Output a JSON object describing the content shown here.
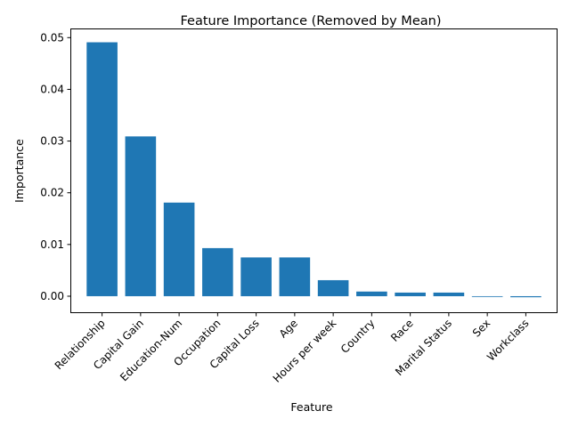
{
  "chart_data": {
    "type": "bar",
    "title": "Feature Importance (Removed by Mean)",
    "xlabel": "Feature",
    "ylabel": "Importance",
    "categories": [
      "Relationship",
      "Capital Gain",
      "Education-Num",
      "Occupation",
      "Capital Loss",
      "Age",
      "Hours per week",
      "Country",
      "Race",
      "Marital Status",
      "Sex",
      "Workclass"
    ],
    "values": [
      0.0491,
      0.0309,
      0.0181,
      0.0093,
      0.0075,
      0.0075,
      0.0031,
      0.0009,
      0.0007,
      0.0007,
      0.0,
      -0.0002
    ],
    "yticks": [
      "0.00",
      "0.01",
      "0.02",
      "0.03",
      "0.04",
      "0.05"
    ],
    "ylim": [
      -0.0031,
      0.0516
    ],
    "grid": false,
    "bar_color": "#1f77b4"
  }
}
